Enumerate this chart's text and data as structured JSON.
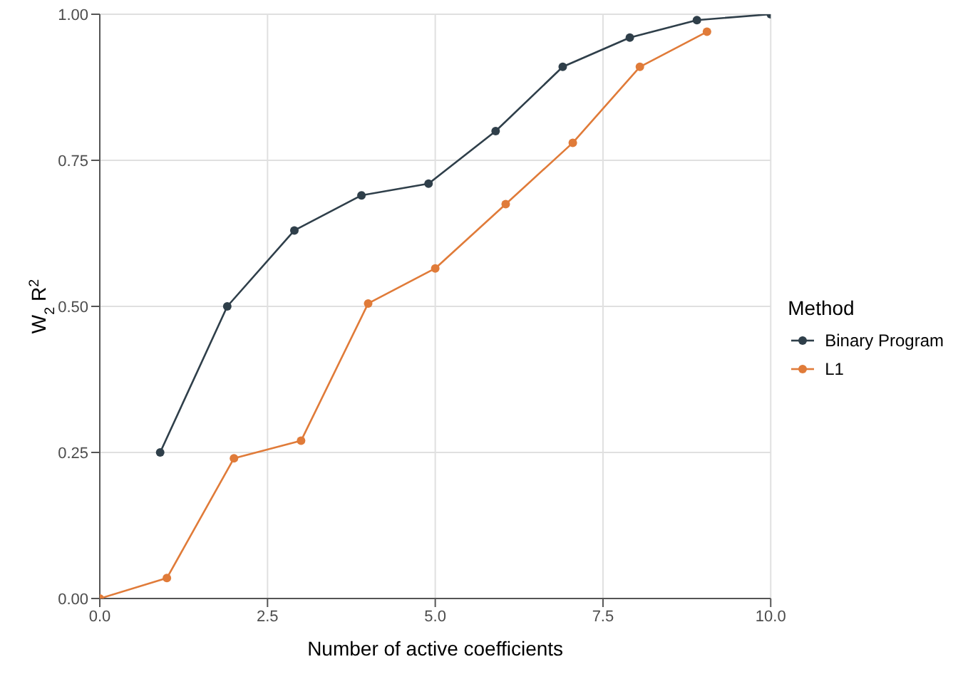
{
  "chart_data": {
    "type": "line",
    "xlabel": "Number of active coefficients",
    "ylabel": "W$_{2}$ R$^{2}$",
    "legend_title": "Method",
    "legend": "right",
    "grid": true,
    "marker": "circle",
    "line_style": "solid",
    "xlim": [
      0,
      10
    ],
    "xticks": [
      {
        "value": 0,
        "label": "0.0"
      },
      {
        "value": 2.5,
        "label": "2.5"
      },
      {
        "value": 5,
        "label": "5.0"
      },
      {
        "value": 7.5,
        "label": "7.5"
      },
      {
        "value": 10,
        "label": "10.0"
      }
    ],
    "ylim": [
      0,
      1
    ],
    "yticks": [
      {
        "value": 0,
        "label": "0.00"
      },
      {
        "value": 0.25,
        "label": "0.25"
      },
      {
        "value": 0.5,
        "label": "0.50"
      },
      {
        "value": 0.75,
        "label": "0.75"
      },
      {
        "value": 1,
        "label": "1.00"
      }
    ],
    "series": [
      {
        "name": "Binary Program",
        "color": "#2f3f4a",
        "x": [
          0.9,
          1.9,
          2.9,
          3.9,
          4.9,
          5.9,
          6.9,
          7.9,
          8.9,
          10
        ],
        "values": [
          0.25,
          0.5,
          0.63,
          0.69,
          0.71,
          0.8,
          0.91,
          0.96,
          0.99,
          1.0
        ]
      },
      {
        "name": "L1",
        "color": "#e07b39",
        "x": [
          0,
          1,
          2,
          3,
          4,
          5,
          6.05,
          7.05,
          8.05,
          9.05
        ],
        "values": [
          0,
          0.035,
          0.24,
          0.27,
          0.505,
          0.565,
          0.675,
          0.78,
          0.91,
          0.97
        ]
      }
    ]
  }
}
